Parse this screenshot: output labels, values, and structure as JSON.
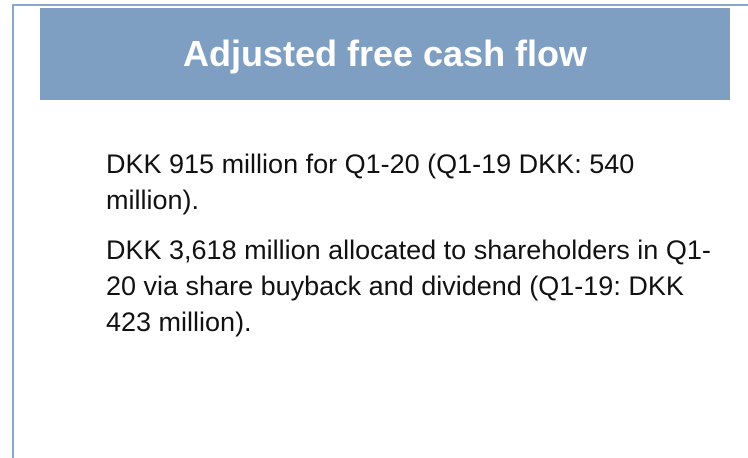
{
  "header": {
    "title": "Adjusted free cash flow"
  },
  "paragraphs": [
    "DKK 915 million for Q1-20 (Q1-19 DKK: 540 million).",
    "DKK 3,618 million allocated to shareholders in Q1-20 via share buyback and dividend (Q1-19: DKK 423 million)."
  ]
}
